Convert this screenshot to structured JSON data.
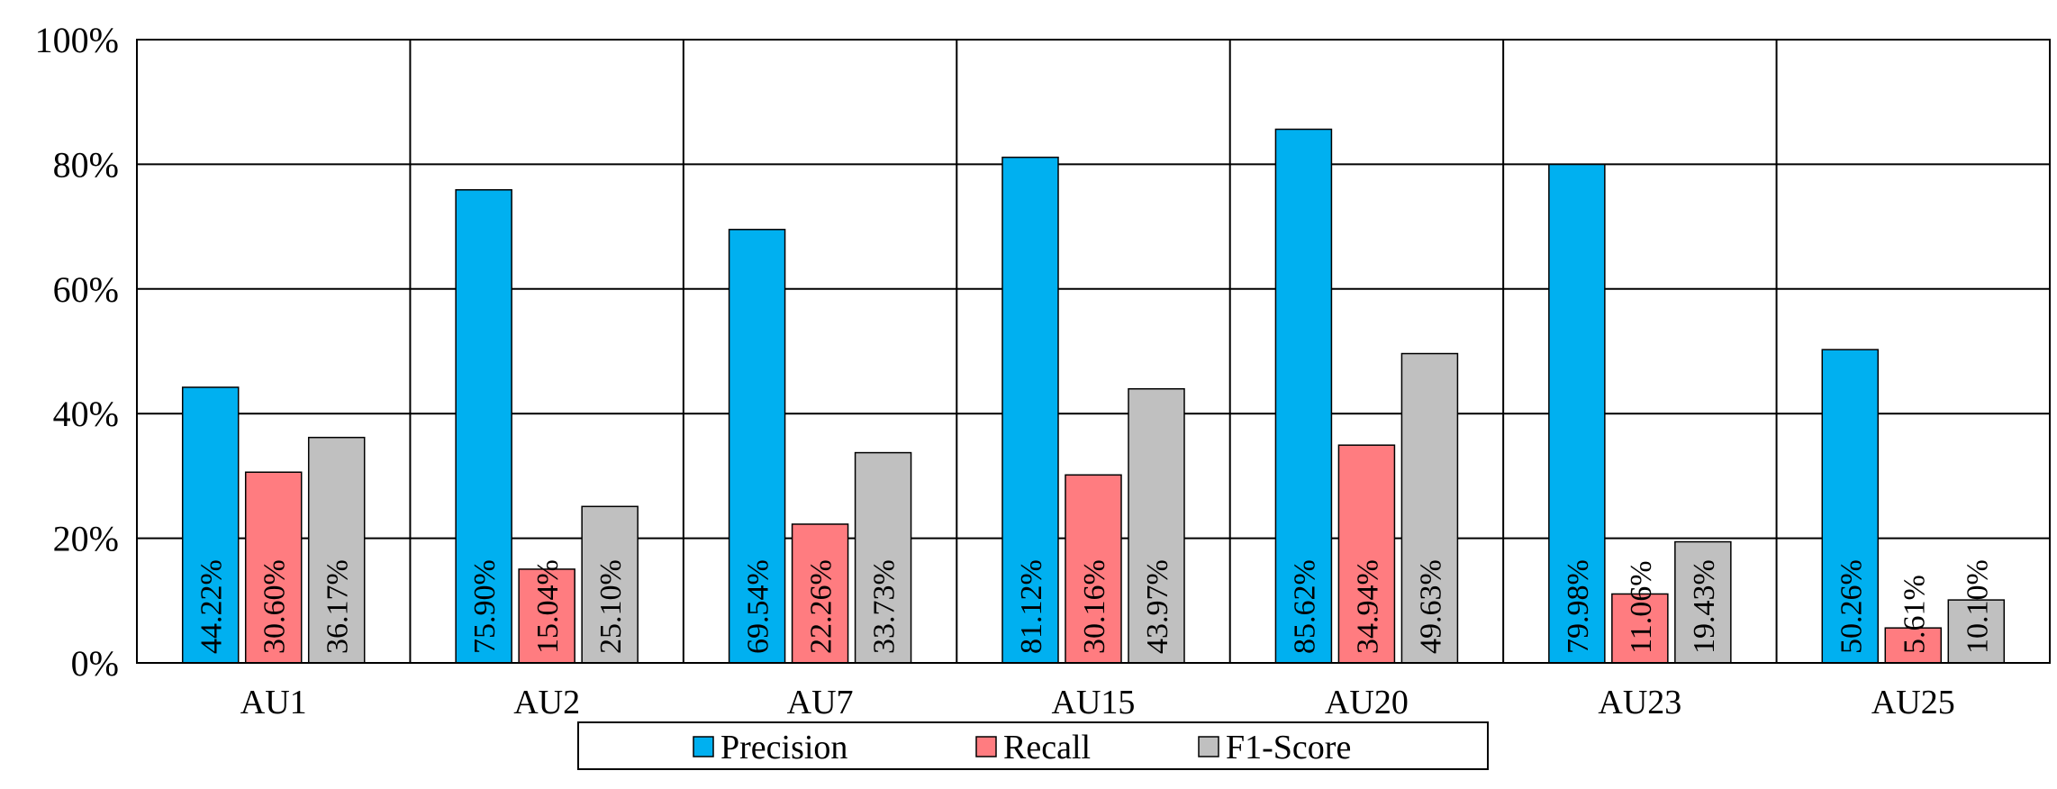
{
  "chart_data": {
    "type": "bar",
    "categories": [
      "AU1",
      "AU2",
      "AU7",
      "AU15",
      "AU20",
      "AU23",
      "AU25"
    ],
    "series": [
      {
        "name": "Precision",
        "color": "#00B0F0",
        "values": [
          44.22,
          75.9,
          69.54,
          81.12,
          85.62,
          79.98,
          50.26
        ],
        "labels": [
          "44.22%",
          "75.90%",
          "69.54%",
          "81.12%",
          "85.62%",
          "79.98%",
          "50.26%"
        ]
      },
      {
        "name": "Recall",
        "color": "#FF7C80",
        "values": [
          30.6,
          15.04,
          22.26,
          30.16,
          34.94,
          11.06,
          5.61
        ],
        "labels": [
          "30.60%",
          "15.04%",
          "22.26%",
          "30.16%",
          "34.94%",
          "11.06%",
          "5.61%"
        ]
      },
      {
        "name": "F1-Score",
        "color": "#C0C0C0",
        "values": [
          36.17,
          25.1,
          33.73,
          43.97,
          49.63,
          19.43,
          10.1
        ],
        "labels": [
          "36.17%",
          "25.10%",
          "33.73%",
          "43.97%",
          "49.63%",
          "19.43%",
          "10.10%"
        ]
      }
    ],
    "ylim": [
      0,
      100
    ],
    "yticks": [
      "0%",
      "20%",
      "40%",
      "60%",
      "80%",
      "100%"
    ],
    "ytick_values": [
      0,
      20,
      40,
      60,
      80,
      100
    ],
    "grid": true,
    "legend_position": "bottom-center"
  }
}
